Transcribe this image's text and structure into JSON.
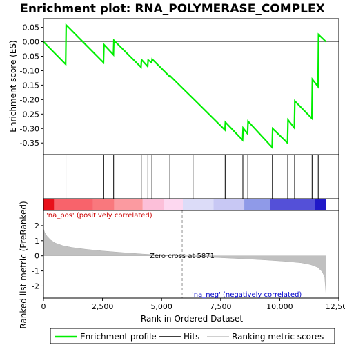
{
  "chart_data": {
    "type": "line",
    "title": "Enrichment plot: RNA_POLYMERASE_COMPLEX",
    "xlabel": "Rank in Ordered Dataset",
    "es_ylabel": "Enrichment score (ES)",
    "metric_ylabel": "Ranked list metric (PreRanked)",
    "xlim": [
      0,
      12500
    ],
    "es_ylim": [
      -0.39,
      0.08
    ],
    "metric_ylim": [
      -2.8,
      3.0
    ],
    "x_ticks": [
      0,
      2500,
      5000,
      7500,
      10000,
      12500
    ],
    "x_tick_labels": [
      "0",
      "2,500",
      "5,000",
      "7,500",
      "10,000",
      "12,500"
    ],
    "es_ticks": [
      0.05,
      0.0,
      -0.05,
      -0.1,
      -0.15,
      -0.2,
      -0.25,
      -0.3,
      -0.35
    ],
    "es_tick_labels": [
      "0.05",
      "0.00",
      "-0.05",
      "-0.10",
      "-0.15",
      "-0.20",
      "-0.25",
      "-0.30",
      "-0.35"
    ],
    "metric_ticks": [
      2,
      1,
      0,
      -1,
      -2
    ],
    "metric_tick_labels": [
      "2",
      "1",
      "0",
      "-1",
      "-2"
    ],
    "enrichment_profile": {
      "name": "Enrichment profile",
      "color": "#00ee00",
      "points": [
        [
          0,
          0.0
        ],
        [
          940,
          -0.078
        ],
        [
          960,
          0.058
        ],
        [
          2540,
          -0.072
        ],
        [
          2560,
          -0.01
        ],
        [
          2960,
          -0.045
        ],
        [
          2980,
          0.005
        ],
        [
          4130,
          -0.088
        ],
        [
          4150,
          -0.062
        ],
        [
          4410,
          -0.085
        ],
        [
          4430,
          -0.063
        ],
        [
          4580,
          -0.072
        ],
        [
          4600,
          -0.06
        ],
        [
          5340,
          -0.12
        ],
        [
          5360,
          -0.118
        ],
        [
          6320,
          -0.195
        ],
        [
          7680,
          -0.305
        ],
        [
          7700,
          -0.278
        ],
        [
          8430,
          -0.34
        ],
        [
          8450,
          -0.298
        ],
        [
          8640,
          -0.318
        ],
        [
          8660,
          -0.275
        ],
        [
          9680,
          -0.365
        ],
        [
          9700,
          -0.3
        ],
        [
          10330,
          -0.35
        ],
        [
          10350,
          -0.27
        ],
        [
          10620,
          -0.298
        ],
        [
          10640,
          -0.205
        ],
        [
          11360,
          -0.265
        ],
        [
          11380,
          -0.13
        ],
        [
          11620,
          -0.155
        ],
        [
          11640,
          0.025
        ],
        [
          11960,
          0.0
        ]
      ]
    },
    "hits": {
      "name": "Hits",
      "positions": [
        950,
        2550,
        2970,
        4140,
        4420,
        4590,
        5350,
        6330,
        7690,
        8440,
        8650,
        9690,
        10340,
        10630,
        11370,
        11630
      ]
    },
    "ranking_metric": {
      "name": "Ranking metric scores",
      "color": "#c0c0c0",
      "curve": [
        [
          0,
          1.8
        ],
        [
          50,
          1.55
        ],
        [
          150,
          1.3
        ],
        [
          300,
          1.05
        ],
        [
          500,
          0.85
        ],
        [
          800,
          0.68
        ],
        [
          1200,
          0.55
        ],
        [
          1800,
          0.43
        ],
        [
          2500,
          0.32
        ],
        [
          3300,
          0.22
        ],
        [
          4200,
          0.12
        ],
        [
          5000,
          0.05
        ],
        [
          5871,
          0.0
        ],
        [
          6600,
          -0.06
        ],
        [
          7500,
          -0.13
        ],
        [
          8500,
          -0.2
        ],
        [
          9400,
          -0.28
        ],
        [
          10200,
          -0.36
        ],
        [
          10900,
          -0.46
        ],
        [
          11300,
          -0.58
        ],
        [
          11600,
          -0.76
        ],
        [
          11800,
          -1.05
        ],
        [
          11900,
          -1.4
        ],
        [
          11960,
          -2.6
        ]
      ]
    },
    "zero_cross": 5871,
    "heatmap_bands": [
      {
        "from": 0,
        "to": 450,
        "color": "#e8101a"
      },
      {
        "from": 450,
        "to": 2100,
        "color": "#f8636b"
      },
      {
        "from": 2100,
        "to": 3000,
        "color": "#f9787d"
      },
      {
        "from": 3000,
        "to": 4200,
        "color": "#fb9aa0"
      },
      {
        "from": 4200,
        "to": 5100,
        "color": "#fcbfd9"
      },
      {
        "from": 5100,
        "to": 5900,
        "color": "#fdd8f0"
      },
      {
        "from": 5900,
        "to": 7200,
        "color": "#dcdcf8"
      },
      {
        "from": 7200,
        "to": 8500,
        "color": "#c8c8f4"
      },
      {
        "from": 8500,
        "to": 9600,
        "color": "#8f9ae8"
      },
      {
        "from": 9600,
        "to": 11500,
        "color": "#5450d8"
      },
      {
        "from": 11500,
        "to": 11960,
        "color": "#2018c8"
      }
    ],
    "annotations": {
      "pos_label": "'na_pos' (positively correlated)",
      "neg_label": "'na_neg' (negatively correlated)",
      "zero_label": "Zero cross at 5871"
    }
  },
  "legend": {
    "items": [
      {
        "label": "Enrichment profile",
        "color": "#00ee00"
      },
      {
        "label": "Hits",
        "color": "#000000"
      },
      {
        "label": "Ranking metric scores",
        "color": "#c0c0c0"
      }
    ]
  }
}
